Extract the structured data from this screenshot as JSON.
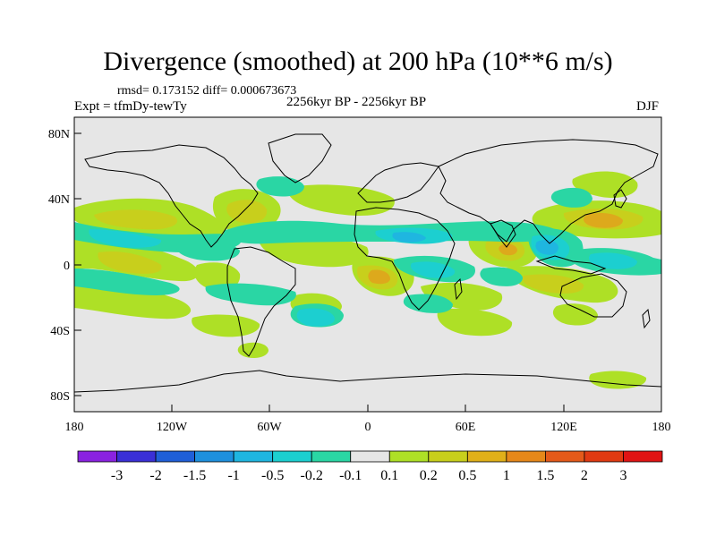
{
  "title": "Divergence (smoothed) at 200 hPa (10**6 m/s)",
  "stats_line": "rmsd= 0.173152 diff= 0.000673673",
  "experiment_line": "Expt = tfmDy-tewTy",
  "period_line": "2256kyr BP - 2256kyr BP",
  "season": "DJF",
  "x_ticks": [
    "180",
    "120W",
    "60W",
    "0",
    "60E",
    "120E",
    "180"
  ],
  "y_ticks": [
    "80N",
    "40N",
    "0",
    "40S",
    "80S"
  ],
  "colorbar": {
    "labels": [
      "-3",
      "-2",
      "-1.5",
      "-1",
      "-0.5",
      "-0.2",
      "-0.1",
      "0.1",
      "0.2",
      "0.5",
      "1",
      "1.5",
      "2",
      "3"
    ],
    "colors": [
      "#8a22e0",
      "#3a2fd6",
      "#1f5fd8",
      "#1e90dd",
      "#1fb6e0",
      "#1ccfd0",
      "#2ad6a4",
      "#e6e6e6",
      "#aee026",
      "#c8cf1c",
      "#e0b019",
      "#e6881a",
      "#e45a1a",
      "#e03a12",
      "#e01414"
    ]
  },
  "colors": {
    "background": "#e6e6e6",
    "coast": "#000000",
    "pos_weak": "#aee026",
    "pos_mid": "#c8cf1c",
    "pos_strong": "#e0a21c",
    "neg_weak": "#2ad6a4",
    "neg_mid": "#1ccfd0",
    "neg_strong": "#1fb6e0"
  }
}
